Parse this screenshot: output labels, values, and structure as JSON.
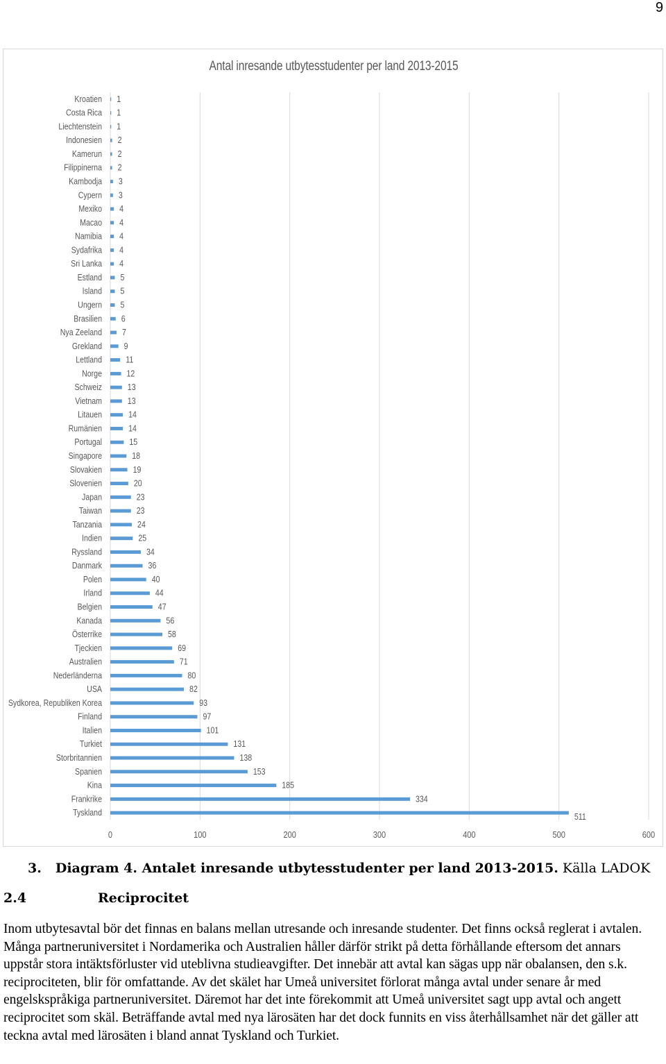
{
  "page_number": "9",
  "chart_data": {
    "type": "bar",
    "orientation": "horizontal",
    "title": "Antal inresande utbytesstudenter per land 2013-2015",
    "categories": [
      "Kroatien",
      "Costa Rica",
      "Liechtenstein",
      "Indonesien",
      "Kamerun",
      "Filippinerna",
      "Kambodja",
      "Cypern",
      "Mexiko",
      "Macao",
      "Namibia",
      "Sydafrika",
      "Sri Lanka",
      "Estland",
      "Island",
      "Ungern",
      "Brasilien",
      "Nya Zeeland",
      "Grekland",
      "Lettland",
      "Norge",
      "Schweiz",
      "Vietnam",
      "Litauen",
      "Rumänien",
      "Portugal",
      "Singapore",
      "Slovakien",
      "Slovenien",
      "Japan",
      "Taiwan",
      "Tanzania",
      "Indien",
      "Ryssland",
      "Danmark",
      "Polen",
      "Irland",
      "Belgien",
      "Kanada",
      "Österrike",
      "Tjeckien",
      "Australien",
      "Nederländerna",
      "USA",
      "Sydkorea, Republiken Korea",
      "Finland",
      "Italien",
      "Turkiet",
      "Storbritannien",
      "Spanien",
      "Kina",
      "Frankrike",
      "Tyskland"
    ],
    "values": [
      1,
      1,
      1,
      2,
      2,
      2,
      3,
      3,
      4,
      4,
      4,
      4,
      4,
      5,
      5,
      5,
      6,
      7,
      9,
      11,
      12,
      13,
      13,
      14,
      14,
      15,
      18,
      19,
      20,
      23,
      23,
      24,
      25,
      34,
      36,
      40,
      44,
      47,
      56,
      58,
      69,
      71,
      80,
      82,
      93,
      97,
      101,
      131,
      138,
      153,
      185,
      334,
      511
    ],
    "xlim": [
      0,
      600
    ],
    "xticks": [
      0,
      100,
      200,
      300,
      400,
      500,
      600
    ],
    "bar_color": "#5b9bd5",
    "grid": "vertical",
    "legend": "none"
  },
  "caption": {
    "number": "3.",
    "bold_text": "Diagram 4. Antalet inresande utbytesstudenter per land 2013-2015.",
    "source": "Källa LADOK"
  },
  "section": {
    "number": "2.4",
    "title": "Reciprocitet"
  },
  "paragraph": "Inom utbytesavtal bör det finnas en balans mellan utresande och inresande studenter. Det finns också reglerat i avtalen. Många partneruniversitet i Nordamerika och Australien håller därför strikt på detta förhållande eftersom det annars uppstår stora intäktsförluster vid uteblivna studieavgifter. Det innebär att avtal kan sägas upp när obalansen, den s.k. reciprociteten, blir för omfattande. Av det skälet har Umeå universitet förlorat många avtal under senare år med engelskspråkiga partneruniversitet. Däremot har det inte förekommit att Umeå universitet sagt upp avtal och angett reciprocitet som skäl. Beträffande avtal med nya lärosäten har det dock funnits en viss återhållsamhet när det gäller att teckna avtal med lärosäten i bland annat Tyskland och Turkiet."
}
